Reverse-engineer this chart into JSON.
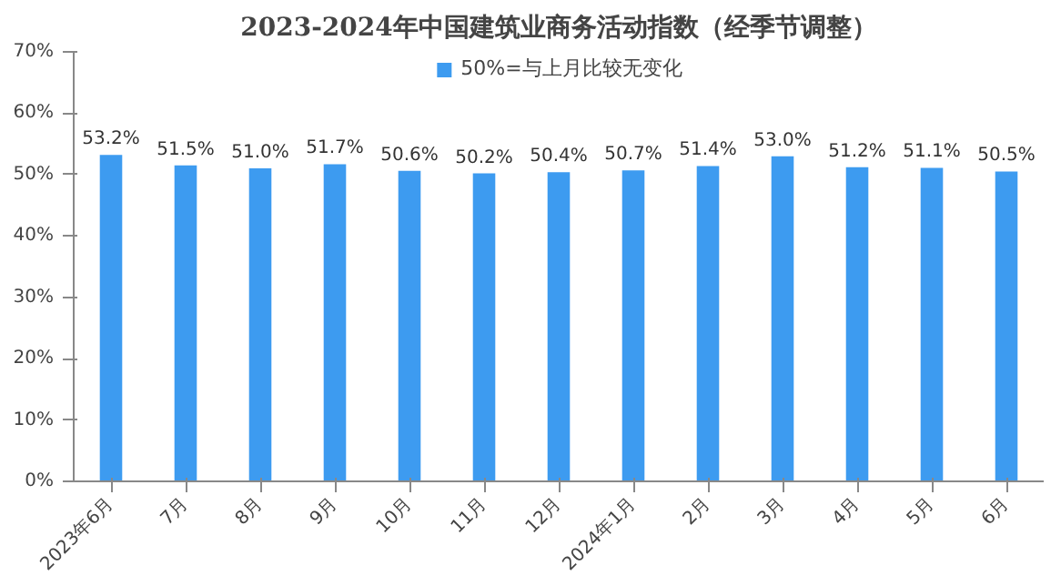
{
  "chart_data": {
    "type": "bar",
    "title": "2023-2024年中国建筑业商务活动指数（经季节调整）",
    "categories": [
      "2023年6月",
      "7月",
      "8月",
      "9月",
      "10月",
      "11月",
      "12月",
      "2024年1月",
      "2月",
      "3月",
      "4月",
      "5月",
      "6月"
    ],
    "series": [
      {
        "name": "50%=与上月比较无变化",
        "color": "#3d9bf0",
        "values": [
          53.2,
          51.5,
          51.0,
          51.7,
          50.6,
          50.2,
          50.4,
          50.7,
          51.4,
          53.0,
          51.2,
          51.1,
          50.5
        ]
      }
    ],
    "value_labels": [
      "53.2%",
      "51.5%",
      "51.0%",
      "51.7%",
      "50.6%",
      "50.2%",
      "50.4%",
      "50.7%",
      "51.4%",
      "53.0%",
      "51.2%",
      "51.1%",
      "50.5%"
    ],
    "ylim": [
      0,
      70
    ],
    "yticks": [
      {
        "value": 0,
        "label": "0%"
      },
      {
        "value": 10,
        "label": "10%"
      },
      {
        "value": 20,
        "label": "20%"
      },
      {
        "value": 30,
        "label": "30%"
      },
      {
        "value": 40,
        "label": "40%"
      },
      {
        "value": 50,
        "label": "50%"
      },
      {
        "value": 60,
        "label": "60%"
      },
      {
        "value": 70,
        "label": "70%"
      }
    ],
    "legend": "top",
    "grid": false
  }
}
